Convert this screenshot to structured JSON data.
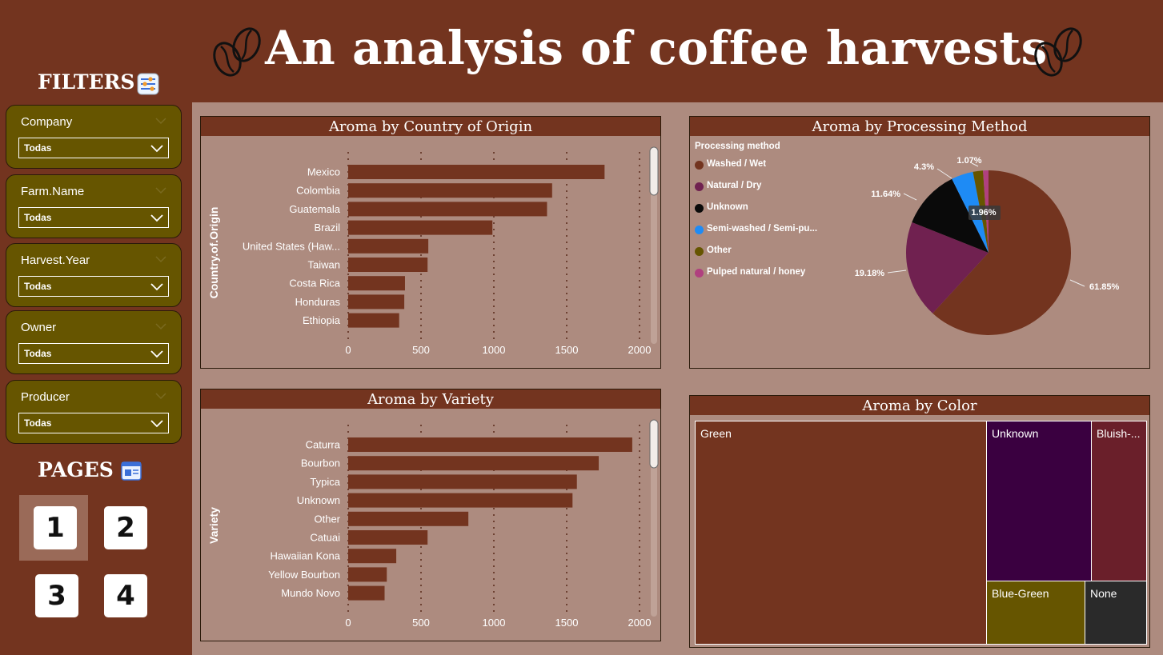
{
  "title": "An analysis of coffee harvests",
  "sidebar": {
    "filters_title": "FILTERS",
    "pages_title": "PAGES",
    "slicers": [
      {
        "label": "Company",
        "value": "Todas"
      },
      {
        "label": "Farm.Name",
        "value": "Todas"
      },
      {
        "label": "Harvest.Year",
        "value": "Todas"
      },
      {
        "label": "Owner",
        "value": "Todas"
      },
      {
        "label": "Producer",
        "value": "Todas"
      }
    ],
    "pages": [
      "1",
      "2",
      "3",
      "4"
    ],
    "active_page": "1"
  },
  "icons": [
    "coffee-bean-icon",
    "filter-sliders-icon",
    "pages-icon",
    "chevron-down-icon"
  ],
  "colors": {
    "background": "#73341f",
    "canvas": "#ad8b7f",
    "slicer": "#665500",
    "bar": "#73341f"
  },
  "chart_data": [
    {
      "type": "bar",
      "orientation": "horizontal",
      "title": "Aroma by Country of Origin",
      "ylabel": "Country.of.Origin",
      "categories": [
        "Mexico",
        "Colombia",
        "Guatemala",
        "Brazil",
        "United States (Haw...",
        "Taiwan",
        "Costa Rica",
        "Honduras",
        "Ethiopia"
      ],
      "values": [
        1760,
        1400,
        1365,
        990,
        550,
        545,
        390,
        385,
        350
      ],
      "xticks": [
        "0",
        "500",
        "1000",
        "1500",
        "2000"
      ],
      "xlim": [
        0,
        2000
      ],
      "grid": true
    },
    {
      "type": "bar",
      "orientation": "horizontal",
      "title": "Aroma by Variety",
      "ylabel": "Variety",
      "categories": [
        "Caturra",
        "Bourbon",
        "Typica",
        "Unknown",
        "Other",
        "Catuai",
        "Hawaiian Kona",
        "Yellow Bourbon",
        "Mundo Novo"
      ],
      "values": [
        1950,
        1720,
        1570,
        1540,
        825,
        545,
        330,
        265,
        250
      ],
      "xticks": [
        "0",
        "500",
        "1000",
        "1500",
        "2000"
      ],
      "xlim": [
        0,
        2000
      ],
      "grid": true
    },
    {
      "type": "pie",
      "title": "Aroma by Processing Method",
      "legend_title": "Processing method",
      "legend_position": "left",
      "slices": [
        {
          "name": "Washed / Wet",
          "value": 61.85,
          "label": "61.85%",
          "color": "#73341f"
        },
        {
          "name": "Natural / Dry",
          "value": 19.18,
          "label": "19.18%",
          "color": "#702150"
        },
        {
          "name": "Unknown",
          "value": 11.64,
          "label": "11.64%",
          "color": "#0a0a0a"
        },
        {
          "name": "Semi-washed / Semi-pu...",
          "value": 4.3,
          "label": "4.3%",
          "color": "#1e8bf5"
        },
        {
          "name": "Other",
          "value": 1.96,
          "label": "1.96%",
          "color": "#665500"
        },
        {
          "name": "Pulped natural / honey",
          "value": 1.07,
          "label": "1.07%",
          "color": "#b0407f"
        }
      ]
    },
    {
      "type": "treemap",
      "title": "Aroma by Color",
      "items": [
        {
          "name": "Green",
          "color": "#73341f"
        },
        {
          "name": "Unknown",
          "color": "#3a0040"
        },
        {
          "name": "Bluish-...",
          "color": "#6a1f2a"
        },
        {
          "name": "Blue-Green",
          "color": "#665500"
        },
        {
          "name": "None",
          "color": "#2a2a2a"
        }
      ]
    }
  ]
}
